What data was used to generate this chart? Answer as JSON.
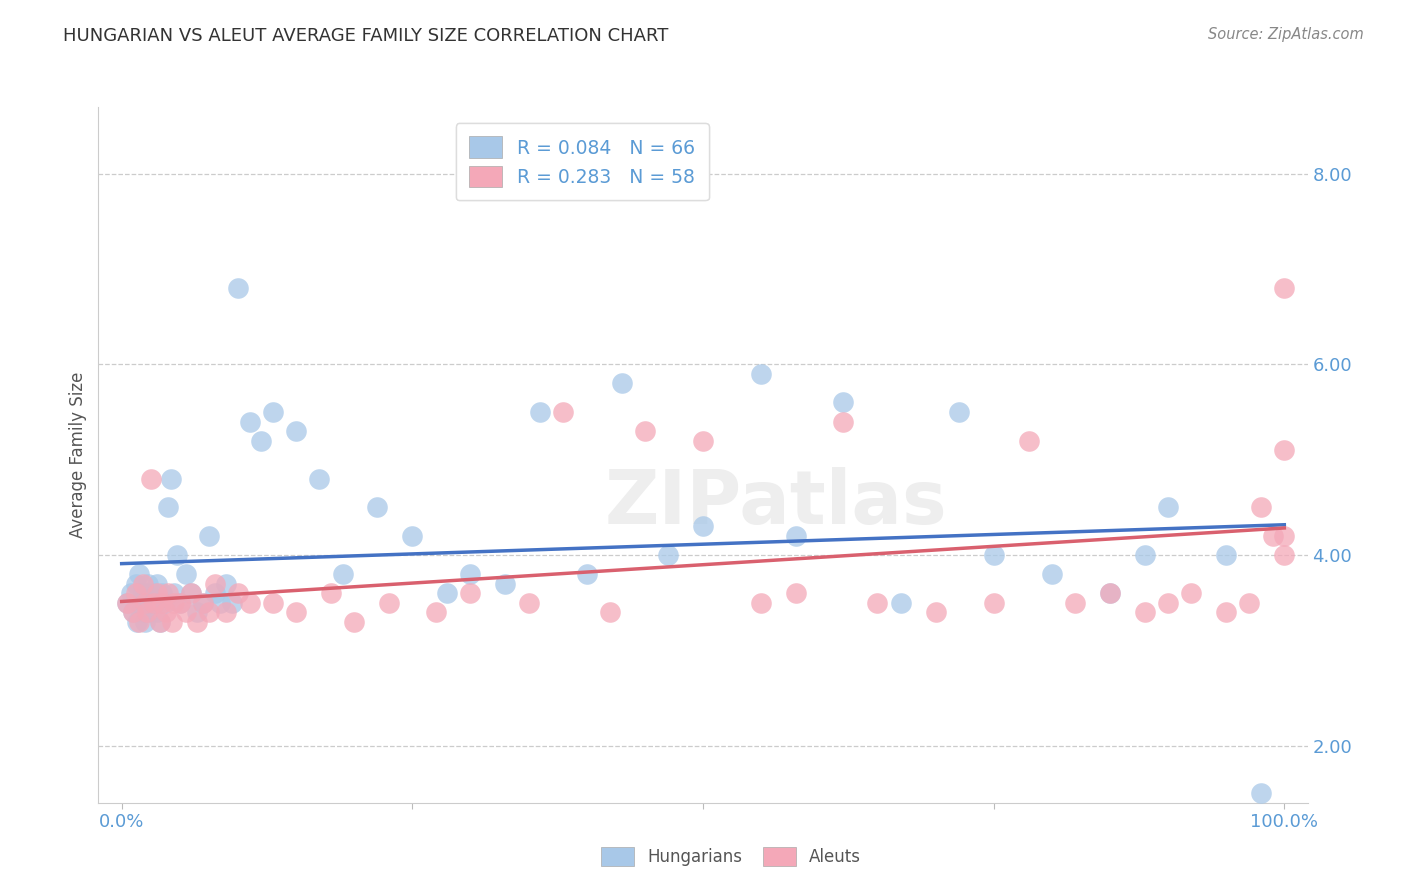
{
  "title": "HUNGARIAN VS ALEUT AVERAGE FAMILY SIZE CORRELATION CHART",
  "ylabel": "Average Family Size",
  "source": "Source: ZipAtlas.com",
  "watermark": "ZIPatlas",
  "hungarian_R": 0.084,
  "hungarian_N": 66,
  "aleut_R": 0.283,
  "aleut_N": 58,
  "hungarian_color": "#a8c8e8",
  "aleut_color": "#f4a8b8",
  "hungarian_line_color": "#4472c4",
  "aleut_line_color": "#d9606e",
  "xlim": [
    -0.02,
    1.02
  ],
  "ylim": [
    1.4,
    8.7
  ],
  "yticks": [
    2.0,
    4.0,
    6.0,
    8.0
  ],
  "ytick_labels": [
    "2.00",
    "4.00",
    "6.00",
    "8.00"
  ],
  "xticks": [
    0.0,
    0.25,
    0.5,
    0.75,
    1.0
  ],
  "xtick_labels": [
    "0.0%",
    "",
    "",
    "",
    "100.0%"
  ],
  "tick_color": "#5b9bd5",
  "hungarian_x": [
    0.005,
    0.008,
    0.01,
    0.012,
    0.013,
    0.015,
    0.015,
    0.017,
    0.018,
    0.02,
    0.02,
    0.022,
    0.023,
    0.025,
    0.025,
    0.027,
    0.028,
    0.03,
    0.03,
    0.032,
    0.033,
    0.035,
    0.037,
    0.04,
    0.042,
    0.045,
    0.048,
    0.05,
    0.055,
    0.06,
    0.065,
    0.07,
    0.075,
    0.08,
    0.085,
    0.09,
    0.095,
    0.1,
    0.11,
    0.12,
    0.13,
    0.15,
    0.17,
    0.19,
    0.22,
    0.25,
    0.28,
    0.3,
    0.33,
    0.36,
    0.4,
    0.43,
    0.47,
    0.5,
    0.55,
    0.58,
    0.62,
    0.67,
    0.72,
    0.75,
    0.8,
    0.85,
    0.88,
    0.9,
    0.95,
    0.98
  ],
  "hungarian_y": [
    3.5,
    3.6,
    3.4,
    3.7,
    3.3,
    3.5,
    3.8,
    3.4,
    3.6,
    3.5,
    3.3,
    3.6,
    3.7,
    3.4,
    3.5,
    3.5,
    3.6,
    3.4,
    3.7,
    3.5,
    3.3,
    3.6,
    3.5,
    4.5,
    4.8,
    3.6,
    4.0,
    3.5,
    3.8,
    3.6,
    3.4,
    3.5,
    4.2,
    3.6,
    3.5,
    3.7,
    3.5,
    6.8,
    5.4,
    5.2,
    5.5,
    5.3,
    4.8,
    3.8,
    4.5,
    4.2,
    3.6,
    3.8,
    3.7,
    5.5,
    3.8,
    5.8,
    4.0,
    4.3,
    5.9,
    4.2,
    5.6,
    3.5,
    5.5,
    4.0,
    3.8,
    3.6,
    4.0,
    4.5,
    4.0,
    1.5
  ],
  "aleut_x": [
    0.005,
    0.01,
    0.012,
    0.015,
    0.018,
    0.02,
    0.022,
    0.025,
    0.028,
    0.03,
    0.033,
    0.035,
    0.038,
    0.04,
    0.043,
    0.045,
    0.05,
    0.055,
    0.06,
    0.065,
    0.07,
    0.075,
    0.08,
    0.09,
    0.1,
    0.11,
    0.13,
    0.15,
    0.18,
    0.2,
    0.23,
    0.27,
    0.3,
    0.35,
    0.38,
    0.42,
    0.45,
    0.5,
    0.55,
    0.58,
    0.62,
    0.65,
    0.7,
    0.75,
    0.78,
    0.82,
    0.85,
    0.88,
    0.9,
    0.92,
    0.95,
    0.97,
    0.98,
    0.99,
    1.0,
    1.0,
    1.0,
    1.0
  ],
  "aleut_y": [
    3.5,
    3.4,
    3.6,
    3.3,
    3.7,
    3.5,
    3.4,
    4.8,
    3.5,
    3.6,
    3.3,
    3.5,
    3.4,
    3.6,
    3.3,
    3.5,
    3.5,
    3.4,
    3.6,
    3.3,
    3.5,
    3.4,
    3.7,
    3.4,
    3.6,
    3.5,
    3.5,
    3.4,
    3.6,
    3.3,
    3.5,
    3.4,
    3.6,
    3.5,
    5.5,
    3.4,
    5.3,
    5.2,
    3.5,
    3.6,
    5.4,
    3.5,
    3.4,
    3.5,
    5.2,
    3.5,
    3.6,
    3.4,
    3.5,
    3.6,
    3.4,
    3.5,
    4.5,
    4.2,
    4.0,
    5.1,
    4.2,
    6.8
  ]
}
